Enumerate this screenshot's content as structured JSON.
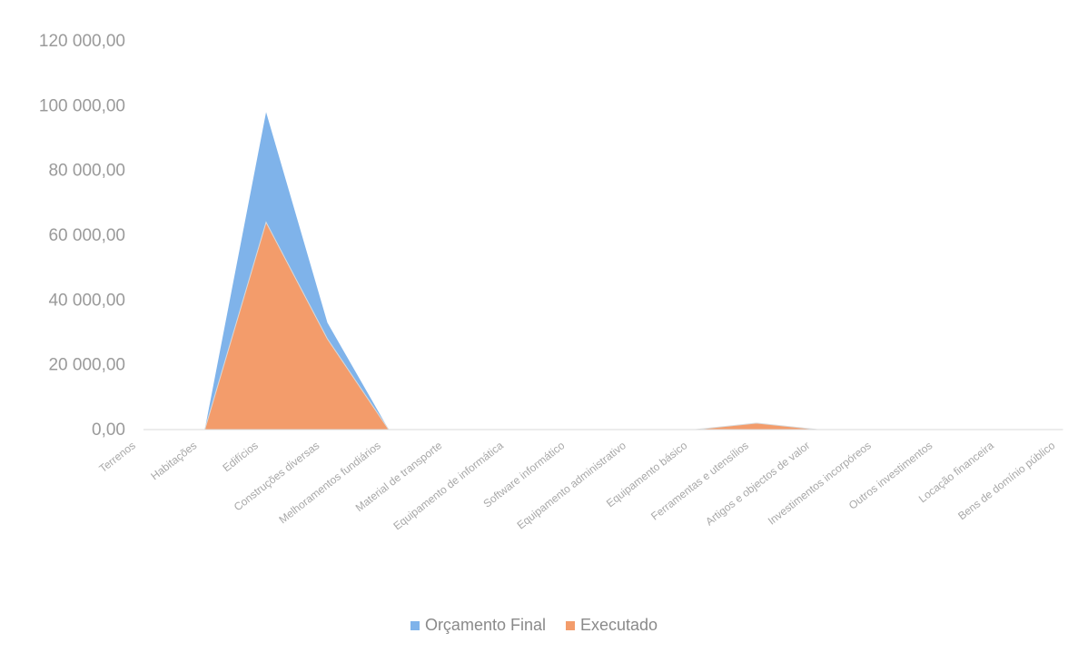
{
  "chart_data": {
    "type": "area",
    "title": "",
    "xlabel": "",
    "ylabel": "",
    "ylim": [
      0,
      120000
    ],
    "yticks": [
      "0,00",
      "20 000,00",
      "40 000,00",
      "60 000,00",
      "80 000,00",
      "100 000,00",
      "120 000,00"
    ],
    "categories": [
      "Terrenos",
      "Habitações",
      "Edifícios",
      "Construções diversas",
      "Melhoramentos fundiários",
      "Material de transporte",
      "Equipamento de informática",
      "Software informático",
      "Equipamento administrativo",
      "Equipamento básico",
      "Ferramentas e utensílios",
      "Artigos e objectos de valor",
      "Investimentos incorpóreos",
      "Outros investimentos",
      "Locação financeira",
      "Bens de domínio público"
    ],
    "series": [
      {
        "name": "Orçamento Final",
        "color": "#7fb3ea",
        "values": [
          0,
          0,
          98000,
          33000,
          0,
          0,
          0,
          0,
          0,
          0,
          1000,
          0,
          0,
          0,
          0,
          0
        ]
      },
      {
        "name": "Executado",
        "color": "#f39c6b",
        "values": [
          0,
          0,
          64000,
          28000,
          0,
          0,
          0,
          0,
          0,
          0,
          2000,
          0,
          0,
          0,
          0,
          0
        ]
      }
    ],
    "grid": false,
    "legend_position": "bottom"
  }
}
